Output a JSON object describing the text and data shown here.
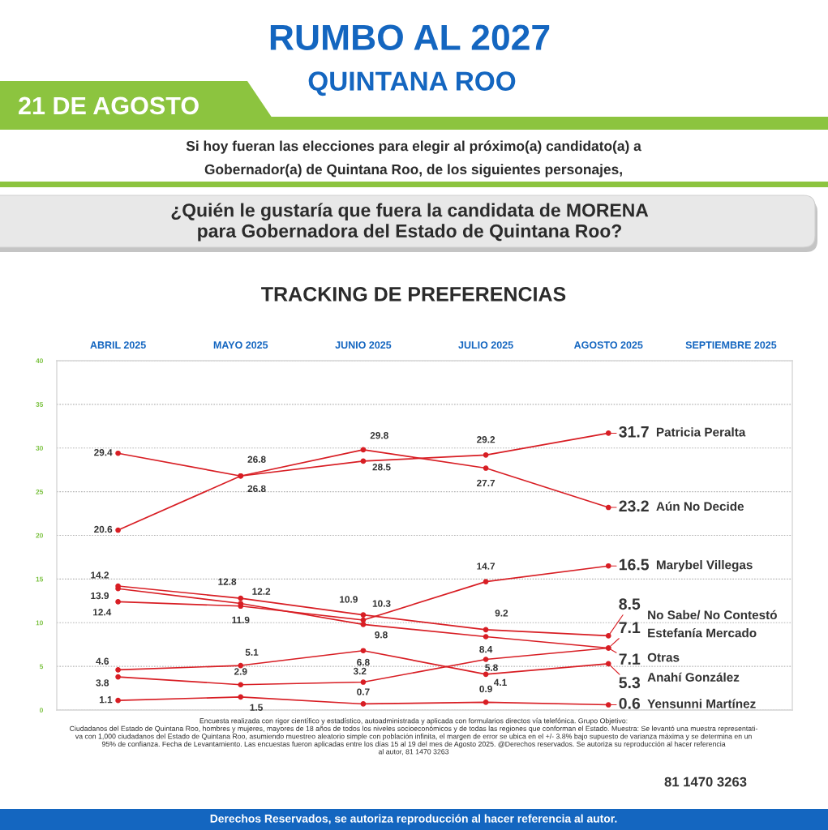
{
  "chart_data": {
    "type": "line",
    "title": "RUMBO AL 2027",
    "subtitle": "QUINTANA ROO",
    "categories": [
      "ABRIL 2025",
      "MAYO 2025",
      "JUNIO 2025",
      "JULIO 2025",
      "AGOSTO 2025",
      "SEPTIEMBRE 2025"
    ],
    "series": [
      {
        "name": "Patricia Peralta",
        "color": "#d81e24",
        "values": [
          20.6,
          26.8,
          28.5,
          29.2,
          31.7,
          null
        ]
      },
      {
        "name": "Aún No Decide",
        "color": "#d81e24",
        "values": [
          29.4,
          26.8,
          29.8,
          27.7,
          23.2,
          null
        ]
      },
      {
        "name": "Marybel Villegas",
        "color": "#d81e24",
        "values": [
          12.4,
          11.9,
          10.3,
          14.7,
          16.5,
          null
        ]
      },
      {
        "name": "No Sabe/ No Contestó",
        "color": "#d81e24",
        "values": [
          14.2,
          12.8,
          10.9,
          9.2,
          8.5,
          null
        ]
      },
      {
        "name": "Estefanía Mercado",
        "color": "#d81e24",
        "values": [
          13.9,
          12.2,
          9.8,
          8.4,
          7.1,
          null
        ]
      },
      {
        "name": "Otras",
        "color": "#d81e24",
        "values": [
          3.8,
          2.9,
          3.2,
          5.8,
          7.1,
          null
        ]
      },
      {
        "name": "Anahí González",
        "color": "#d81e24",
        "values": [
          4.6,
          5.1,
          6.8,
          4.1,
          5.3,
          null
        ]
      },
      {
        "name": "Yensunni Martínez",
        "color": "#d81e24",
        "values": [
          1.1,
          1.5,
          0.7,
          0.9,
          0.6,
          null
        ]
      }
    ],
    "ylim": [
      0,
      40
    ],
    "yticks": [
      0,
      5,
      10,
      15,
      20,
      25,
      30,
      35,
      40
    ],
    "grid": "y",
    "marker": "circle",
    "line_style": "solid",
    "data_labels": true,
    "annotations": [
      "21 DE AGOSTO",
      "Si hoy fueran las elecciones para elegir al próximo(a) candidato(a) a\nGobernador(a) de Quintana Roo, de los siguientes personajes,",
      "¿Quién le gustaría que fuera la candidata de MORENA\npara Gobernadora del Estado de Quintana Roo?",
      "TRACKING DE PREFERENCIAS",
      "Encuesta realizada con rigor científico y estadístico, autoadministrada y aplicada con formularios directos vía telefónica. Grupo Objetivo:\nCiudadanos del Estado de Quintana Roo, hombres y mujeres, mayores de 18 años de todos los niveles socioeconómicos y de todas las regiones que conforman el Estado. Muestra: Se levantó una muestra representati-\nva con 1,000 ciudadanos del Estado de Quintana Roo, asumiendo muestreo aleatorio simple con población infinita, el margen de error se ubica en el +/- 3.8% bajo supuesto de varianza máxima y se determina en un\n95% de confianza. Fecha de Levantamiento. Las encuestas fueron aplicadas entre los días 15 al 19 del mes de Agosto 2025. @Derechos reservados. Se autoriza su reproducción al hacer referencia\nal autor, 81 1470 3263",
      "81 1470 3263",
      "Derechos Reservados, se autoriza reproducción al hacer referencia al autor."
    ]
  }
}
